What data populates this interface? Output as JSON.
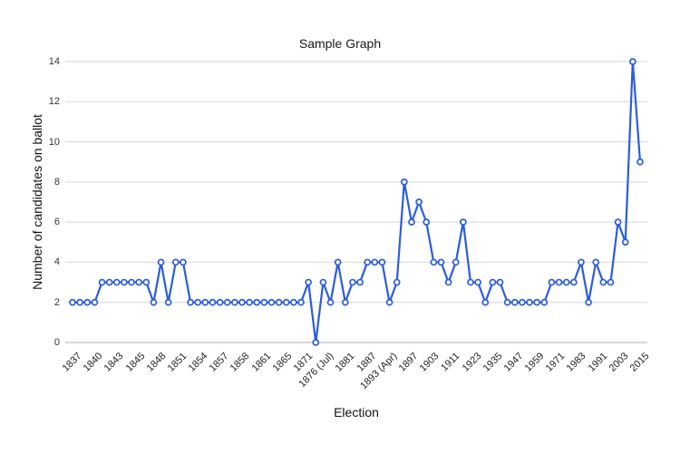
{
  "chart_data": {
    "type": "line",
    "title": "Sample Graph",
    "xlabel": "Election",
    "ylabel": "Number of candidates on ballot",
    "ylim": [
      0,
      14
    ],
    "yticks": [
      0,
      2,
      4,
      6,
      8,
      10,
      12,
      14
    ],
    "grid": true,
    "legend": false,
    "line_color": "#2a5cdf",
    "grid_color": "#d6d6d6",
    "baseline_color": "#aeaeae",
    "marker": "open-circle",
    "x_tick_labels": [
      "1837",
      "1840",
      "1843",
      "1845",
      "1848",
      "1851",
      "1854",
      "1857",
      "1858",
      "1861",
      "1865",
      "1871",
      "1876 (Jul)",
      "1881",
      "1887",
      "1893 (Apr)",
      "1897",
      "1903",
      "1911",
      "1923",
      "1935",
      "1947",
      "1959",
      "1971",
      "1983",
      "1991",
      "2003",
      "2015"
    ],
    "values": [
      2,
      2,
      2,
      2,
      3,
      3,
      3,
      3,
      3,
      3,
      3,
      2,
      4,
      2,
      4,
      4,
      2,
      2,
      2,
      2,
      2,
      2,
      2,
      2,
      2,
      2,
      2,
      2,
      2,
      2,
      2,
      2,
      3,
      0,
      3,
      2,
      4,
      2,
      3,
      3,
      4,
      4,
      4,
      2,
      3,
      8,
      6,
      7,
      6,
      4,
      4,
      3,
      4,
      6,
      3,
      3,
      2,
      3,
      3,
      2,
      2,
      2,
      2,
      2,
      2,
      3,
      3,
      3,
      3,
      4,
      2,
      4,
      3,
      3,
      6,
      5,
      14,
      9
    ]
  }
}
